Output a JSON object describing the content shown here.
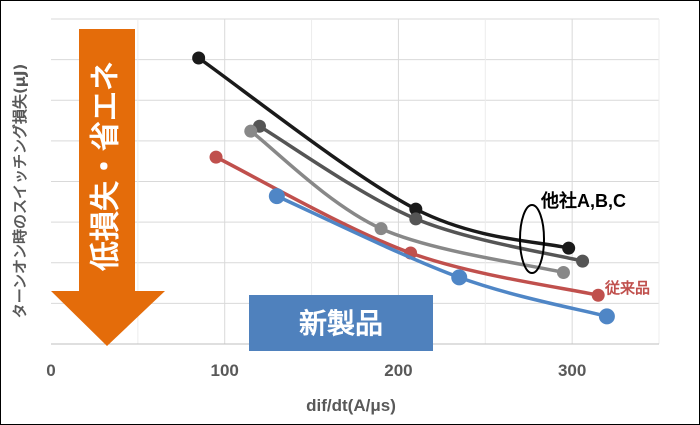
{
  "chart_data": {
    "type": "line",
    "xlabel": "dif/dt(A/μs)",
    "ylabel": "ターンオン時のスイッチング損失(μJ)",
    "xlim": [
      0,
      350
    ],
    "x_ticks": [
      "0",
      "100",
      "200",
      "300"
    ],
    "y_ticks_shown": false,
    "grid": true,
    "series": [
      {
        "name": "black",
        "color": "#1a1a1a",
        "x": [
          85,
          210,
          298
        ],
        "y": [
          0.88,
          0.415,
          0.295
        ]
      },
      {
        "name": "darkgray",
        "color": "#555555",
        "x": [
          120,
          210,
          306
        ],
        "y": [
          0.67,
          0.385,
          0.255
        ]
      },
      {
        "name": "gray",
        "color": "#888888",
        "x": [
          115,
          190,
          295
        ],
        "y": [
          0.655,
          0.355,
          0.22
        ]
      },
      {
        "name": "red",
        "color": "#c0504d",
        "x": [
          95,
          207,
          315
        ],
        "y": [
          0.575,
          0.28,
          0.15
        ]
      },
      {
        "name": "blue",
        "color": "#4f86c6",
        "x": [
          130,
          235,
          320
        ],
        "y": [
          0.455,
          0.205,
          0.085
        ]
      }
    ],
    "annotations": {
      "others": "他社A,B,C",
      "conventional": "従来品",
      "new_product": "新製品",
      "arrow": "低損失・省エネ"
    }
  }
}
